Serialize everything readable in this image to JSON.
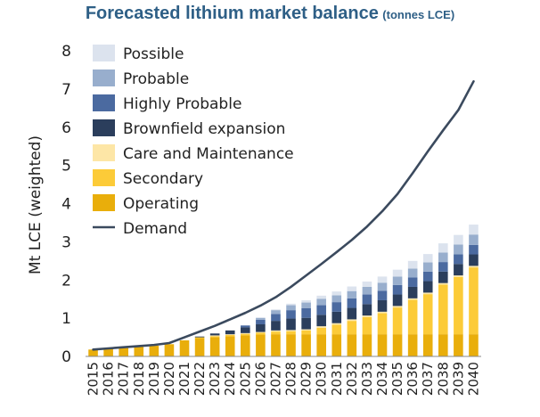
{
  "title": "Forecasted lithium market balance",
  "subtitle": "(tonnes LCE)",
  "chart_data": {
    "type": "bar",
    "stacked": true,
    "ylabel": "Mt LCE (weighted)",
    "ylim": [
      0,
      8
    ],
    "yticks": [
      0,
      1,
      2,
      3,
      4,
      5,
      6,
      7,
      8
    ],
    "legend_position": "top-left",
    "categories": [
      "2015",
      "2016",
      "2017",
      "2018",
      "2019",
      "2020",
      "2021",
      "2022",
      "2023",
      "2024",
      "2025",
      "2026",
      "2027",
      "2028",
      "2029",
      "2030",
      "2031",
      "2032",
      "2033",
      "2034",
      "2035",
      "2036",
      "2037",
      "2038",
      "2039",
      "2040"
    ],
    "series": [
      {
        "name": "Operating",
        "color": "#e9ae0b",
        "values": [
          0.18,
          0.2,
          0.22,
          0.25,
          0.28,
          0.32,
          0.42,
          0.48,
          0.5,
          0.53,
          0.55,
          0.57,
          0.58,
          0.58,
          0.58,
          0.58,
          0.58,
          0.58,
          0.58,
          0.58,
          0.58,
          0.58,
          0.58,
          0.58,
          0.58,
          0.58
        ]
      },
      {
        "name": "Secondary",
        "color": "#fccb38",
        "values": [
          0,
          0,
          0,
          0,
          0,
          0,
          0,
          0.02,
          0.03,
          0.03,
          0.04,
          0.05,
          0.07,
          0.08,
          0.1,
          0.17,
          0.25,
          0.35,
          0.45,
          0.55,
          0.7,
          0.9,
          1.05,
          1.3,
          1.5,
          1.75
        ]
      },
      {
        "name": "Care and Maintenance",
        "color": "#fde6a6",
        "values": [
          0,
          0,
          0,
          0,
          0,
          0,
          0,
          0,
          0.02,
          0.02,
          0.02,
          0.02,
          0.03,
          0.03,
          0.03,
          0.04,
          0.04,
          0.04,
          0.04,
          0.04,
          0.04,
          0.04,
          0.04,
          0.04,
          0.04,
          0.04
        ]
      },
      {
        "name": "Brownfield expansion",
        "color": "#2b3e5c",
        "values": [
          0,
          0,
          0,
          0,
          0,
          0,
          0,
          0.02,
          0.05,
          0.1,
          0.15,
          0.2,
          0.25,
          0.3,
          0.3,
          0.3,
          0.3,
          0.3,
          0.3,
          0.3,
          0.3,
          0.3,
          0.3,
          0.3,
          0.3,
          0.3
        ]
      },
      {
        "name": "Highly Probable",
        "color": "#4b6aa0",
        "values": [
          0,
          0,
          0,
          0,
          0,
          0,
          0,
          0,
          0,
          0,
          0.05,
          0.12,
          0.18,
          0.22,
          0.25,
          0.25,
          0.25,
          0.25,
          0.25,
          0.25,
          0.25,
          0.25,
          0.25,
          0.25,
          0.25,
          0.25
        ]
      },
      {
        "name": "Probable",
        "color": "#98aecd",
        "values": [
          0,
          0,
          0,
          0,
          0,
          0,
          0,
          0,
          0,
          0,
          0,
          0.05,
          0.1,
          0.13,
          0.15,
          0.17,
          0.18,
          0.19,
          0.2,
          0.21,
          0.22,
          0.23,
          0.24,
          0.25,
          0.26,
          0.27
        ]
      },
      {
        "name": "Possible",
        "color": "#dce3ee",
        "values": [
          0,
          0,
          0,
          0,
          0,
          0,
          0,
          0,
          0,
          0,
          0,
          0,
          0.02,
          0.04,
          0.06,
          0.08,
          0.1,
          0.12,
          0.14,
          0.16,
          0.18,
          0.2,
          0.22,
          0.24,
          0.25,
          0.26
        ]
      }
    ],
    "demand": {
      "name": "Demand",
      "color": "#3b4a5e",
      "values": [
        0.18,
        0.21,
        0.24,
        0.27,
        0.3,
        0.35,
        0.5,
        0.65,
        0.8,
        0.97,
        1.14,
        1.33,
        1.55,
        1.82,
        2.12,
        2.42,
        2.73,
        3.05,
        3.4,
        3.8,
        4.25,
        4.8,
        5.37,
        5.92,
        6.45,
        7.2
      ]
    },
    "legend_order": [
      "Possible",
      "Probable",
      "Highly Probable",
      "Brownfield expansion",
      "Care and Maintenance",
      "Secondary",
      "Operating",
      "Demand"
    ]
  }
}
